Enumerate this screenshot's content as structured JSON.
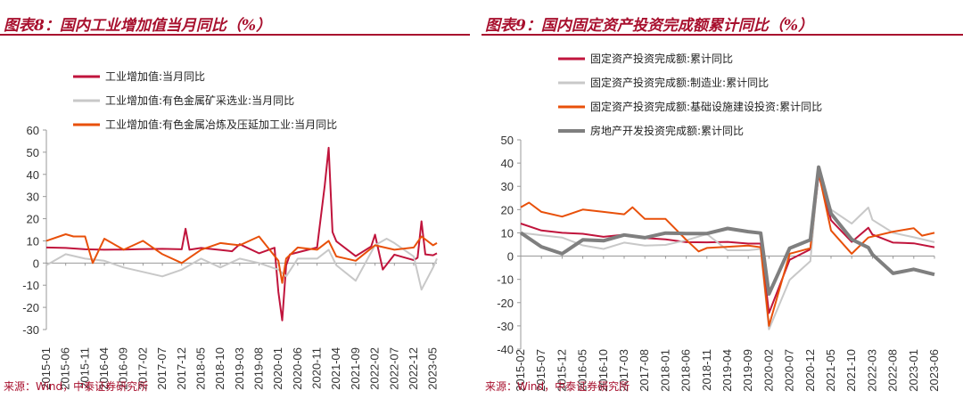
{
  "panels": [
    {
      "title": "图表8：国内工业增加值当月同比（%）",
      "source": "来源：Wind，中泰证券研究所"
    },
    {
      "title": "图表9：国内固定资产投资完成额累计同比（%）",
      "source": "来源：Wind，中泰证券研究所"
    }
  ],
  "chart_data": [
    {
      "type": "line",
      "title": "",
      "ylim": [
        -30,
        60
      ],
      "yticks": [
        60,
        50,
        40,
        30,
        20,
        10,
        0,
        -10,
        -20,
        -30
      ],
      "x_tick_labels": [
        "2015-01",
        "2015-06",
        "2015-11",
        "2016-04",
        "2016-09",
        "2017-02",
        "2017-07",
        "2017-12",
        "2018-05",
        "2018-10",
        "2019-03",
        "2019-08",
        "2020-01",
        "2020-06",
        "2020-11",
        "2021-04",
        "2021-09",
        "2022-02",
        "2022-07",
        "2022-12",
        "2023-05"
      ],
      "x_start": "2015-01",
      "x_end": "2023-06",
      "legend_position": "top-left",
      "series": [
        {
          "name": "工业增加值:当月同比",
          "color": "#c0143c",
          "width": 2,
          "points": [
            [
              "2015-01",
              7
            ],
            [
              "2015-06",
              6.8
            ],
            [
              "2015-11",
              6.2
            ],
            [
              "2016-04",
              6
            ],
            [
              "2016-09",
              6.1
            ],
            [
              "2017-01",
              6.3
            ],
            [
              "2017-07",
              6.4
            ],
            [
              "2017-12",
              6.2
            ],
            [
              "2018-01",
              15.5
            ],
            [
              "2018-02",
              6
            ],
            [
              "2018-05",
              6.8
            ],
            [
              "2018-10",
              5.9
            ],
            [
              "2019-01",
              5.3
            ],
            [
              "2019-03",
              8.5
            ],
            [
              "2019-08",
              4.4
            ],
            [
              "2019-12",
              6.9
            ],
            [
              "2020-01",
              -13
            ],
            [
              "2020-02",
              -25.9
            ],
            [
              "2020-03",
              -1.1
            ],
            [
              "2020-04",
              3.9
            ],
            [
              "2020-06",
              4.8
            ],
            [
              "2020-11",
              7
            ],
            [
              "2021-01",
              35
            ],
            [
              "2021-02",
              52
            ],
            [
              "2021-03",
              14
            ],
            [
              "2021-04",
              9.8
            ],
            [
              "2021-09",
              3.1
            ],
            [
              "2022-01",
              7.5
            ],
            [
              "2022-02",
              12.8
            ],
            [
              "2022-04",
              -2.9
            ],
            [
              "2022-07",
              3.8
            ],
            [
              "2022-12",
              1.3
            ],
            [
              "2023-01",
              2.4
            ],
            [
              "2023-02",
              18.8
            ],
            [
              "2023-03",
              3.9
            ],
            [
              "2023-05",
              3.5
            ],
            [
              "2023-06",
              4.4
            ]
          ]
        },
        {
          "name": "工业增加值:有色金属矿采选业:当月同比",
          "color": "#c8c8c8",
          "width": 2,
          "points": [
            [
              "2015-01",
              -1
            ],
            [
              "2015-06",
              4
            ],
            [
              "2015-11",
              2
            ],
            [
              "2016-04",
              1
            ],
            [
              "2016-09",
              -2
            ],
            [
              "2017-02",
              -4
            ],
            [
              "2017-07",
              -6
            ],
            [
              "2017-12",
              -3
            ],
            [
              "2018-05",
              2
            ],
            [
              "2018-10",
              -2
            ],
            [
              "2019-03",
              2
            ],
            [
              "2019-08",
              0
            ],
            [
              "2020-01",
              -3
            ],
            [
              "2020-03",
              -6
            ],
            [
              "2020-06",
              2
            ],
            [
              "2020-11",
              2
            ],
            [
              "2021-02",
              6
            ],
            [
              "2021-04",
              -1
            ],
            [
              "2021-09",
              -8
            ],
            [
              "2022-02",
              8
            ],
            [
              "2022-05",
              11
            ],
            [
              "2022-07",
              9
            ],
            [
              "2022-12",
              3
            ],
            [
              "2023-02",
              -12
            ],
            [
              "2023-05",
              -2
            ],
            [
              "2023-06",
              2
            ]
          ]
        },
        {
          "name": "工业增加值:有色金属冶炼及压延加工业:当月同比",
          "color": "#e8500a",
          "width": 2,
          "points": [
            [
              "2015-01",
              10
            ],
            [
              "2015-06",
              13
            ],
            [
              "2015-08",
              12
            ],
            [
              "2015-11",
              12
            ],
            [
              "2016-01",
              0
            ],
            [
              "2016-04",
              11
            ],
            [
              "2016-09",
              6
            ],
            [
              "2017-02",
              10
            ],
            [
              "2017-07",
              4
            ],
            [
              "2017-12",
              0
            ],
            [
              "2018-05",
              6
            ],
            [
              "2018-10",
              9
            ],
            [
              "2019-03",
              8
            ],
            [
              "2019-08",
              12
            ],
            [
              "2020-01",
              1
            ],
            [
              "2020-02",
              -9
            ],
            [
              "2020-03",
              2
            ],
            [
              "2020-06",
              7
            ],
            [
              "2020-11",
              6
            ],
            [
              "2021-02",
              10
            ],
            [
              "2021-04",
              3
            ],
            [
              "2021-09",
              1
            ],
            [
              "2022-02",
              8
            ],
            [
              "2022-07",
              6
            ],
            [
              "2022-12",
              7
            ],
            [
              "2023-02",
              12
            ],
            [
              "2023-05",
              8
            ],
            [
              "2023-06",
              9
            ]
          ]
        }
      ]
    },
    {
      "type": "line",
      "title": "",
      "ylim": [
        -40,
        50
      ],
      "yticks": [
        50,
        40,
        30,
        20,
        10,
        0,
        -10,
        -20,
        -30,
        -40
      ],
      "x_tick_labels": [
        "2015-02",
        "2015-07",
        "2015-12",
        "2016-05",
        "2016-10",
        "2017-03",
        "2017-08",
        "2018-01",
        "2018-06",
        "2018-11",
        "2019-04",
        "2019-09",
        "2020-02",
        "2020-07",
        "2020-12",
        "2021-05",
        "2021-10",
        "2022-03",
        "2022-08",
        "2023-01",
        "2023-06"
      ],
      "x_start": "2015-02",
      "x_end": "2023-06",
      "legend_position": "top-left",
      "series": [
        {
          "name": "固定资产投资完成额:累计同比",
          "color": "#c0143c",
          "width": 2,
          "points": [
            [
              "2015-02",
              14
            ],
            [
              "2015-07",
              11
            ],
            [
              "2015-12",
              10
            ],
            [
              "2016-05",
              9.6
            ],
            [
              "2016-10",
              8.3
            ],
            [
              "2017-03",
              9.2
            ],
            [
              "2017-08",
              7.8
            ],
            [
              "2018-01",
              7.2
            ],
            [
              "2018-06",
              6
            ],
            [
              "2018-11",
              5.9
            ],
            [
              "2019-04",
              6.1
            ],
            [
              "2019-09",
              5.4
            ],
            [
              "2019-12",
              5.4
            ],
            [
              "2020-02",
              -24.5
            ],
            [
              "2020-07",
              -1.6
            ],
            [
              "2020-12",
              2.9
            ],
            [
              "2021-02",
              35
            ],
            [
              "2021-05",
              15.4
            ],
            [
              "2021-10",
              6.1
            ],
            [
              "2022-02",
              12.2
            ],
            [
              "2022-03",
              9.3
            ],
            [
              "2022-08",
              5.8
            ],
            [
              "2023-01",
              5.5
            ],
            [
              "2023-06",
              3.8
            ]
          ]
        },
        {
          "name": "固定资产投资完成额:制造业:累计同比",
          "color": "#c8c8c8",
          "width": 2,
          "points": [
            [
              "2015-02",
              10
            ],
            [
              "2015-07",
              9
            ],
            [
              "2015-12",
              8
            ],
            [
              "2016-05",
              4.6
            ],
            [
              "2016-10",
              3.1
            ],
            [
              "2017-03",
              5.8
            ],
            [
              "2017-08",
              4.5
            ],
            [
              "2018-01",
              4.8
            ],
            [
              "2018-06",
              6.8
            ],
            [
              "2018-11",
              9.5
            ],
            [
              "2019-04",
              2.5
            ],
            [
              "2019-09",
              2.5
            ],
            [
              "2019-12",
              3.1
            ],
            [
              "2020-02",
              -31.5
            ],
            [
              "2020-07",
              -10.2
            ],
            [
              "2020-12",
              -2.2
            ],
            [
              "2021-02",
              37
            ],
            [
              "2021-05",
              20
            ],
            [
              "2021-10",
              14
            ],
            [
              "2022-02",
              20.9
            ],
            [
              "2022-03",
              15.6
            ],
            [
              "2022-08",
              10
            ],
            [
              "2023-01",
              8.1
            ],
            [
              "2023-06",
              6
            ]
          ]
        },
        {
          "name": "固定资产投资完成额:基础设施建设投资:累计同比",
          "color": "#e8500a",
          "width": 2,
          "points": [
            [
              "2015-02",
              21
            ],
            [
              "2015-04",
              23
            ],
            [
              "2015-07",
              19
            ],
            [
              "2015-12",
              17
            ],
            [
              "2016-05",
              20
            ],
            [
              "2016-10",
              19
            ],
            [
              "2017-03",
              18
            ],
            [
              "2017-05",
              21
            ],
            [
              "2017-08",
              16
            ],
            [
              "2018-01",
              16
            ],
            [
              "2018-06",
              7
            ],
            [
              "2018-09",
              2
            ],
            [
              "2018-11",
              3.5
            ],
            [
              "2019-04",
              4
            ],
            [
              "2019-09",
              4.5
            ],
            [
              "2019-12",
              3.8
            ],
            [
              "2020-02",
              -30
            ],
            [
              "2020-07",
              1
            ],
            [
              "2020-12",
              3.4
            ],
            [
              "2021-02",
              36
            ],
            [
              "2021-05",
              11
            ],
            [
              "2021-10",
              1
            ],
            [
              "2022-02",
              8
            ],
            [
              "2022-08",
              10.5
            ],
            [
              "2023-01",
              12
            ],
            [
              "2023-03",
              8.8
            ],
            [
              "2023-06",
              10
            ]
          ]
        },
        {
          "name": "房地产开发投资完成额:累计同比",
          "color": "#7f7f7f",
          "width": 4,
          "points": [
            [
              "2015-02",
              10
            ],
            [
              "2015-07",
              4
            ],
            [
              "2015-12",
              1
            ],
            [
              "2016-05",
              7
            ],
            [
              "2016-10",
              6.6
            ],
            [
              "2017-03",
              9.1
            ],
            [
              "2017-08",
              7.9
            ],
            [
              "2018-01",
              9.9
            ],
            [
              "2018-06",
              9.7
            ],
            [
              "2018-11",
              9.7
            ],
            [
              "2019-04",
              11.9
            ],
            [
              "2019-09",
              10.5
            ],
            [
              "2019-12",
              9.9
            ],
            [
              "2020-02",
              -16.3
            ],
            [
              "2020-07",
              3.4
            ],
            [
              "2020-12",
              7
            ],
            [
              "2021-02",
              38.3
            ],
            [
              "2021-05",
              18.3
            ],
            [
              "2021-10",
              7.2
            ],
            [
              "2022-02",
              3.7
            ],
            [
              "2022-03",
              0.7
            ],
            [
              "2022-08",
              -7.4
            ],
            [
              "2023-01",
              -5.7
            ],
            [
              "2023-06",
              -7.9
            ]
          ]
        }
      ]
    }
  ]
}
